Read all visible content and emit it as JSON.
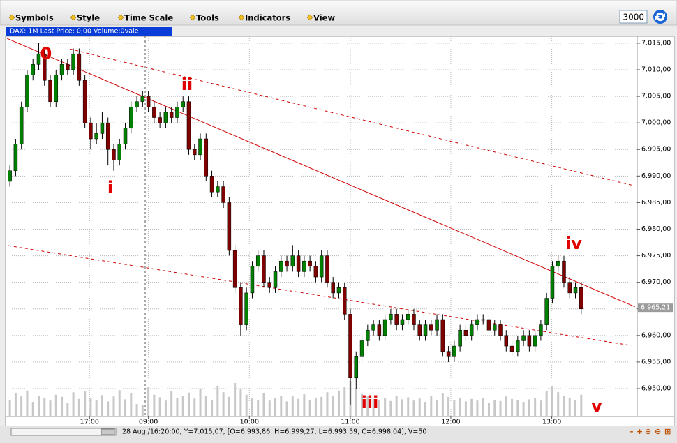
{
  "toolbar": {
    "menus": [
      "Symbols",
      "Style",
      "Time Scale",
      "Tools",
      "Indicators",
      "View"
    ],
    "refresh_value": "3000"
  },
  "status_bar": "28 Aug /16:20:00, Y=7.015,07, [O=6.993,86, H=6.999,27, L=6.993,59, C=6.998,04], V=50",
  "chart_data": {
    "type": "candlestick",
    "info_label": "DAX: 1M Last Price: 0,00 Volume:0vale",
    "up_color": "#008000",
    "down_color": "#800000",
    "volume_color": "#c8c8c8",
    "grid": true,
    "xlim": [
      0,
      109.2
    ],
    "xticks": [
      {
        "value": 14.3,
        "label": "17:00"
      },
      {
        "value": 24.5,
        "label": "09:00"
      },
      {
        "value": 42,
        "label": "10:00"
      },
      {
        "value": 59.5,
        "label": "11:00"
      },
      {
        "value": 76.9,
        "label": "12:00"
      },
      {
        "value": 94.4,
        "label": "13:00"
      }
    ],
    "ylim": [
      6944.75,
      7016.3
    ],
    "yticks": [
      {
        "value": 6950,
        "label": "6.950,00"
      },
      {
        "value": 6955,
        "label": "6.955,00"
      },
      {
        "value": 6960,
        "label": "6.960,00"
      },
      {
        "value": 6965,
        "label": "6.965,00"
      },
      {
        "value": 6970,
        "label": "6.970,00"
      },
      {
        "value": 6975,
        "label": "6.975,00"
      },
      {
        "value": 6980,
        "label": "6.980,00"
      },
      {
        "value": 6985,
        "label": "6.985,00"
      },
      {
        "value": 6990,
        "label": "6.990,00"
      },
      {
        "value": 6995,
        "label": "6.995,00"
      },
      {
        "value": 7000,
        "label": "7.000,00"
      },
      {
        "value": 7005,
        "label": "7.005,00"
      },
      {
        "value": 7010,
        "label": "7.010,00"
      },
      {
        "value": 7015,
        "label": "7.015,00"
      }
    ],
    "y2lim": [
      0,
      100
    ],
    "last_price": {
      "value": 6965.21,
      "label": "6.965,21"
    },
    "annotations": [
      "0",
      "i",
      "ii",
      "iii",
      "iv",
      "v"
    ],
    "trendlines": [
      {
        "style": "solid",
        "color": "#d00000",
        "points": [
          [
            0,
            7015.9
          ],
          [
            108.8,
            6965.4
          ]
        ]
      },
      {
        "style": "dashed",
        "color": "#d00000",
        "points": [
          [
            10.9,
            7013.9
          ],
          [
            108.2,
            6988.3
          ]
        ]
      },
      {
        "style": "dashed",
        "color": "#d00000",
        "points": [
          [
            0.24,
            6976.9
          ],
          [
            108.2,
            6958.1
          ]
        ]
      }
    ],
    "ohlc": [
      [
        6989,
        6992,
        6988,
        6991
      ],
      [
        6991,
        6997,
        6990,
        6996
      ],
      [
        6996,
        7004,
        6995,
        7003
      ],
      [
        7003,
        7010,
        7002,
        7009
      ],
      [
        7009,
        7012,
        7008,
        7011
      ],
      [
        7011,
        7015,
        7010,
        7013
      ],
      [
        7013,
        7014,
        7007,
        7008
      ],
      [
        7008,
        7009,
        7003,
        7004
      ],
      [
        7004,
        7010,
        7003,
        7009
      ],
      [
        7009,
        7012,
        7008,
        7011
      ],
      [
        7011,
        7012,
        7009,
        7010
      ],
      [
        7010,
        7014,
        7009,
        7013
      ],
      [
        7013,
        7014,
        7007,
        7008
      ],
      [
        7008,
        7009,
        6999,
        7000
      ],
      [
        7000,
        7001,
        6995,
        6997
      ],
      [
        6997,
        7000,
        6996,
        6998
      ],
      [
        6998,
        7002,
        6997,
        7000
      ],
      [
        7000,
        7001,
        6992,
        6995
      ],
      [
        6995,
        6996,
        6991,
        6993
      ],
      [
        6993,
        6997,
        6992,
        6996
      ],
      [
        6996,
        7000,
        6995,
        6999
      ],
      [
        6999,
        7004,
        6998,
        7003
      ],
      [
        7003,
        7005,
        7002,
        7004
      ],
      [
        7004,
        7006,
        7003,
        7005
      ],
      [
        7005,
        7006,
        7002,
        7003
      ],
      [
        7003,
        7004,
        7000,
        7001
      ],
      [
        7001,
        7002,
        6999,
        7000
      ],
      [
        7000,
        7003,
        6999,
        7002
      ],
      [
        7002,
        7003,
        7000,
        7001
      ],
      [
        7001,
        7004,
        7000,
        7003
      ],
      [
        7003,
        7005,
        7002,
        7004
      ],
      [
        7004,
        7005,
        6994,
        6995
      ],
      [
        6995,
        6996,
        6993,
        6994
      ],
      [
        6994,
        6998,
        6993,
        6997
      ],
      [
        6997,
        6998,
        6989,
        6990
      ],
      [
        6990,
        6991,
        6986,
        6987
      ],
      [
        6987,
        6989,
        6986,
        6988
      ],
      [
        6988,
        6989,
        6984,
        6985
      ],
      [
        6985,
        6986,
        6975,
        6976
      ],
      [
        6976,
        6977,
        6968,
        6969
      ],
      [
        6969,
        6970,
        6960,
        6962
      ],
      [
        6962,
        6969,
        6961,
        6968
      ],
      [
        6968,
        6974,
        6967,
        6973
      ],
      [
        6973,
        6976,
        6972,
        6975
      ],
      [
        6975,
        6976,
        6969,
        6970
      ],
      [
        6970,
        6971,
        6968,
        6969
      ],
      [
        6969,
        6973,
        6968,
        6972
      ],
      [
        6972,
        6975,
        6971,
        6974
      ],
      [
        6974,
        6975,
        6972,
        6973
      ],
      [
        6973,
        6977,
        6972,
        6975
      ],
      [
        6975,
        6976,
        6971,
        6972
      ],
      [
        6972,
        6975,
        6971,
        6974
      ],
      [
        6974,
        6975,
        6972,
        6973
      ],
      [
        6973,
        6974,
        6970,
        6971
      ],
      [
        6971,
        6976,
        6970,
        6975
      ],
      [
        6975,
        6976,
        6969,
        6970
      ],
      [
        6970,
        6971,
        6967,
        6968
      ],
      [
        6968,
        6970,
        6967,
        6969
      ],
      [
        6969,
        6970,
        6963,
        6964
      ],
      [
        6964,
        6965,
        6947,
        6952
      ],
      [
        6952,
        6957,
        6950,
        6956
      ],
      [
        6956,
        6960,
        6955,
        6959
      ],
      [
        6959,
        6962,
        6958,
        6961
      ],
      [
        6961,
        6963,
        6960,
        6962
      ],
      [
        6962,
        6963,
        6959,
        6960
      ],
      [
        6960,
        6964,
        6959,
        6963
      ],
      [
        6963,
        6965,
        6962,
        6964
      ],
      [
        6964,
        6965,
        6961,
        6962
      ],
      [
        6962,
        6964,
        6961,
        6963
      ],
      [
        6963,
        6965,
        6962,
        6964
      ],
      [
        6964,
        6965,
        6961,
        6962
      ],
      [
        6962,
        6963,
        6959,
        6960
      ],
      [
        6960,
        6963,
        6959,
        6962
      ],
      [
        6962,
        6963,
        6960,
        6961
      ],
      [
        6961,
        6964,
        6960,
        6963
      ],
      [
        6963,
        6964,
        6956,
        6957
      ],
      [
        6957,
        6958,
        6955,
        6956
      ],
      [
        6956,
        6959,
        6955,
        6958
      ],
      [
        6958,
        6962,
        6957,
        6961
      ],
      [
        6961,
        6962,
        6959,
        6960
      ],
      [
        6960,
        6963,
        6959,
        6962
      ],
      [
        6962,
        6964,
        6961,
        6963
      ],
      [
        6963,
        6964,
        6962,
        6963
      ],
      [
        6963,
        6964,
        6960,
        6961
      ],
      [
        6961,
        6963,
        6960,
        6962
      ],
      [
        6962,
        6963,
        6959,
        6960
      ],
      [
        6960,
        6961,
        6957,
        6958
      ],
      [
        6958,
        6959,
        6956,
        6957
      ],
      [
        6957,
        6960,
        6956,
        6959
      ],
      [
        6959,
        6961,
        6958,
        6960
      ],
      [
        6960,
        6961,
        6957,
        6958
      ],
      [
        6958,
        6961,
        6957,
        6960
      ],
      [
        6960,
        6963,
        6959,
        6962
      ],
      [
        6962,
        6968,
        6961,
        6967
      ],
      [
        6967,
        6974,
        6966,
        6973
      ],
      [
        6973,
        6975,
        6972,
        6974
      ],
      [
        6974,
        6975,
        6969,
        6970
      ],
      [
        6970,
        6971,
        6967,
        6968
      ],
      [
        6968,
        6970,
        6967,
        6969
      ],
      [
        6969,
        6970,
        6964,
        6965
      ]
    ],
    "volume": [
      40,
      55,
      48,
      62,
      35,
      50,
      44,
      38,
      52,
      47,
      33,
      58,
      42,
      60,
      45,
      39,
      51,
      36,
      48,
      63,
      41,
      55,
      30,
      28,
      70,
      52,
      46,
      38,
      61,
      44,
      49,
      57,
      43,
      66,
      50,
      39,
      72,
      58,
      47,
      80,
      65,
      52,
      44,
      40,
      56,
      38,
      45,
      50,
      36,
      48,
      42,
      53,
      39,
      44,
      47,
      58,
      50,
      62,
      70,
      85,
      66,
      54,
      48,
      42,
      39,
      45,
      37,
      50,
      41,
      46,
      38,
      43,
      35,
      49,
      40,
      55,
      47,
      39,
      44,
      36,
      42,
      38,
      45,
      33,
      40,
      37,
      48,
      42,
      39,
      35,
      41,
      44,
      38,
      60,
      72,
      58,
      50,
      45,
      40,
      52
    ]
  }
}
